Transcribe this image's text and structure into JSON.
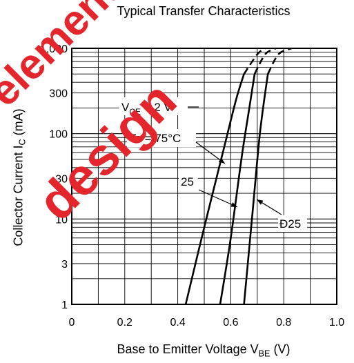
{
  "watermark": {
    "line1": "element",
    "line2": "design",
    "color": "#e4262c"
  },
  "chart_data": {
    "type": "line",
    "title": "Typical Transfer Characteristics",
    "xlabel": {
      "text": "Base to Emitter Voltage  V",
      "sub": "BE",
      "unit": "  (V)"
    },
    "ylabel": {
      "text": "Collector Current  I",
      "sub": "C",
      "unit": "  (mA)"
    },
    "xlim": [
      0,
      1.0
    ],
    "ylim": [
      1,
      1000
    ],
    "y_scale": "log",
    "grid": true,
    "x_ticks": [
      "0",
      "0.2",
      "0.4",
      "0.6",
      "0.8",
      "1.0"
    ],
    "y_ticks": [
      "1",
      "3",
      "10",
      "30",
      "100",
      "300",
      "1,000"
    ],
    "condition": {
      "prefix": "V",
      "sub": "CE",
      "suffix": " = 2 V"
    },
    "series": [
      {
        "name": "Ta = 75°C",
        "x": [
          0.43,
          0.5,
          0.57,
          0.62,
          0.65
        ],
        "y": [
          1,
          8,
          60,
          250,
          500
        ],
        "dashed_x": [
          0.65,
          0.7,
          0.73
        ],
        "dashed_y": [
          500,
          850,
          1000
        ]
      },
      {
        "name": "25",
        "x": [
          0.56,
          0.6,
          0.64,
          0.67,
          0.69
        ],
        "y": [
          1,
          6,
          50,
          200,
          500
        ],
        "dashed_x": [
          0.69,
          0.73,
          0.77
        ],
        "dashed_y": [
          500,
          850,
          1000
        ]
      },
      {
        "name": "Ð25",
        "x": [
          0.65,
          0.68,
          0.71,
          0.74
        ],
        "y": [
          1,
          10,
          100,
          500
        ],
        "dashed_x": [
          0.74,
          0.78,
          0.83
        ],
        "dashed_y": [
          500,
          850,
          1000
        ]
      }
    ]
  }
}
